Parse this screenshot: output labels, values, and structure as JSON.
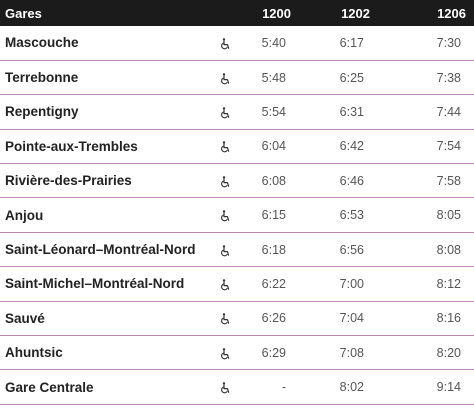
{
  "header": {
    "station_label": "Gares",
    "trains": [
      "1200",
      "1202",
      "1206"
    ]
  },
  "stations": [
    {
      "name": "Mascouche",
      "accessible": true,
      "times": [
        "5:40",
        "6:17",
        "7:30"
      ]
    },
    {
      "name": "Terrebonne",
      "accessible": true,
      "times": [
        "5:48",
        "6:25",
        "7:38"
      ]
    },
    {
      "name": "Repentigny",
      "accessible": true,
      "times": [
        "5:54",
        "6:31",
        "7:44"
      ]
    },
    {
      "name": "Pointe-aux-Trembles",
      "accessible": true,
      "times": [
        "6:04",
        "6:42",
        "7:54"
      ]
    },
    {
      "name": "Rivière-des-Prairies",
      "accessible": true,
      "times": [
        "6:08",
        "6:46",
        "7:58"
      ]
    },
    {
      "name": "Anjou",
      "accessible": true,
      "times": [
        "6:15",
        "6:53",
        "8:05"
      ]
    },
    {
      "name": "Saint-Léonard–Montréal-Nord",
      "accessible": true,
      "times": [
        "6:18",
        "6:56",
        "8:08"
      ]
    },
    {
      "name": "Saint-Michel–Montréal-Nord",
      "accessible": true,
      "times": [
        "6:22",
        "7:00",
        "8:12"
      ]
    },
    {
      "name": "Sauvé",
      "accessible": true,
      "times": [
        "6:26",
        "7:04",
        "8:16"
      ]
    },
    {
      "name": "Ahuntsic",
      "accessible": true,
      "times": [
        "6:29",
        "7:08",
        "8:20"
      ]
    },
    {
      "name": "Gare Centrale",
      "accessible": true,
      "times": [
        "-",
        "8:02",
        "9:14"
      ]
    }
  ],
  "icons": {
    "accessibility": "wheelchair-icon"
  },
  "colors": {
    "header_bg": "#1b1b1b",
    "row_divider": "#b788b8"
  }
}
